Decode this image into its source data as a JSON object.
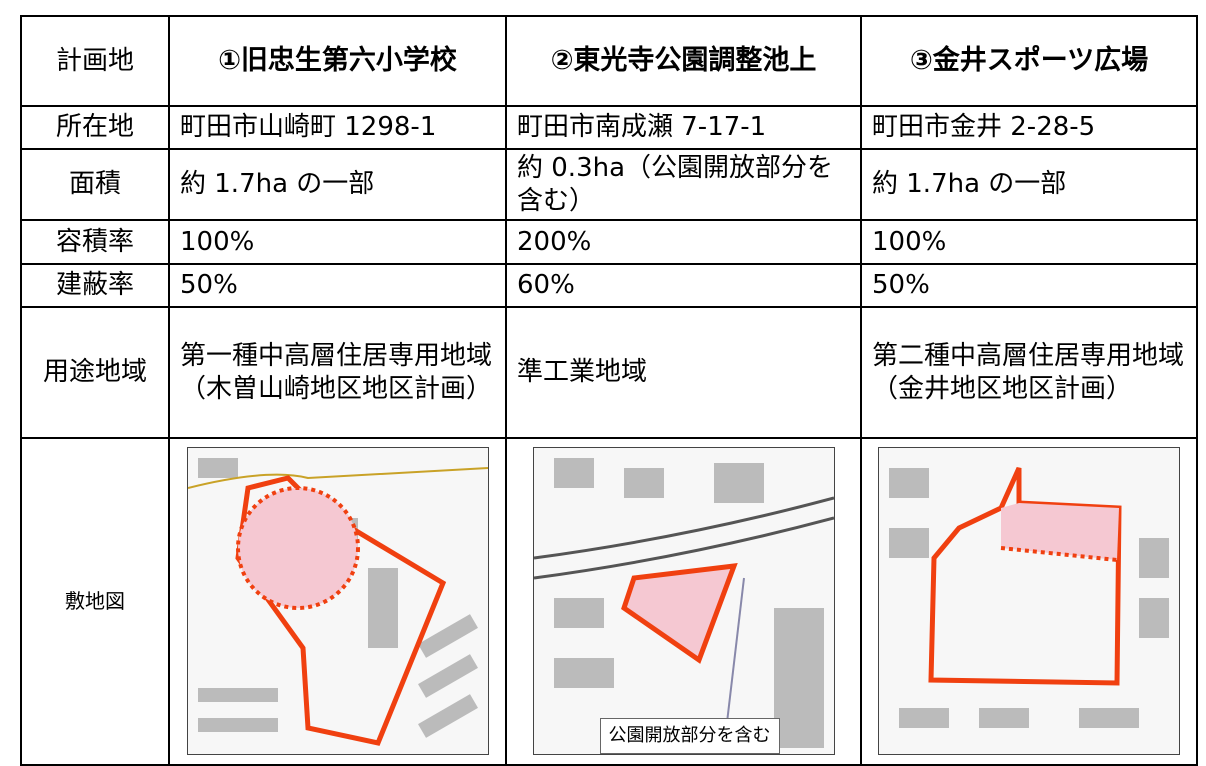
{
  "table": {
    "header": [
      "計画地",
      "①旧忠生第六小学校",
      "②東光寺公園調整池上",
      "③金井スポーツ広場"
    ],
    "rows": [
      [
        "所在地",
        "町田市山崎町 1298-1",
        "町田市南成瀬 7-17-1",
        "町田市金井 2-28-5"
      ],
      [
        "面積",
        "約 1.7ha の一部",
        "約 0.3ha（公園開放部分を含む）",
        "約 1.7ha の一部"
      ],
      [
        "容積率",
        "100%",
        "200%",
        "100%"
      ],
      [
        "建蔽率",
        "50%",
        "60%",
        "50%"
      ],
      [
        "用途地域",
        "第一種中高層住居専用地域（木曽山崎地区地区計画）",
        "準工業地域",
        "第二種中高層住居専用地域（金井地区地区計画）"
      ]
    ],
    "map_label": "敷地図",
    "map_note": "公園開放部分を含む"
  }
}
